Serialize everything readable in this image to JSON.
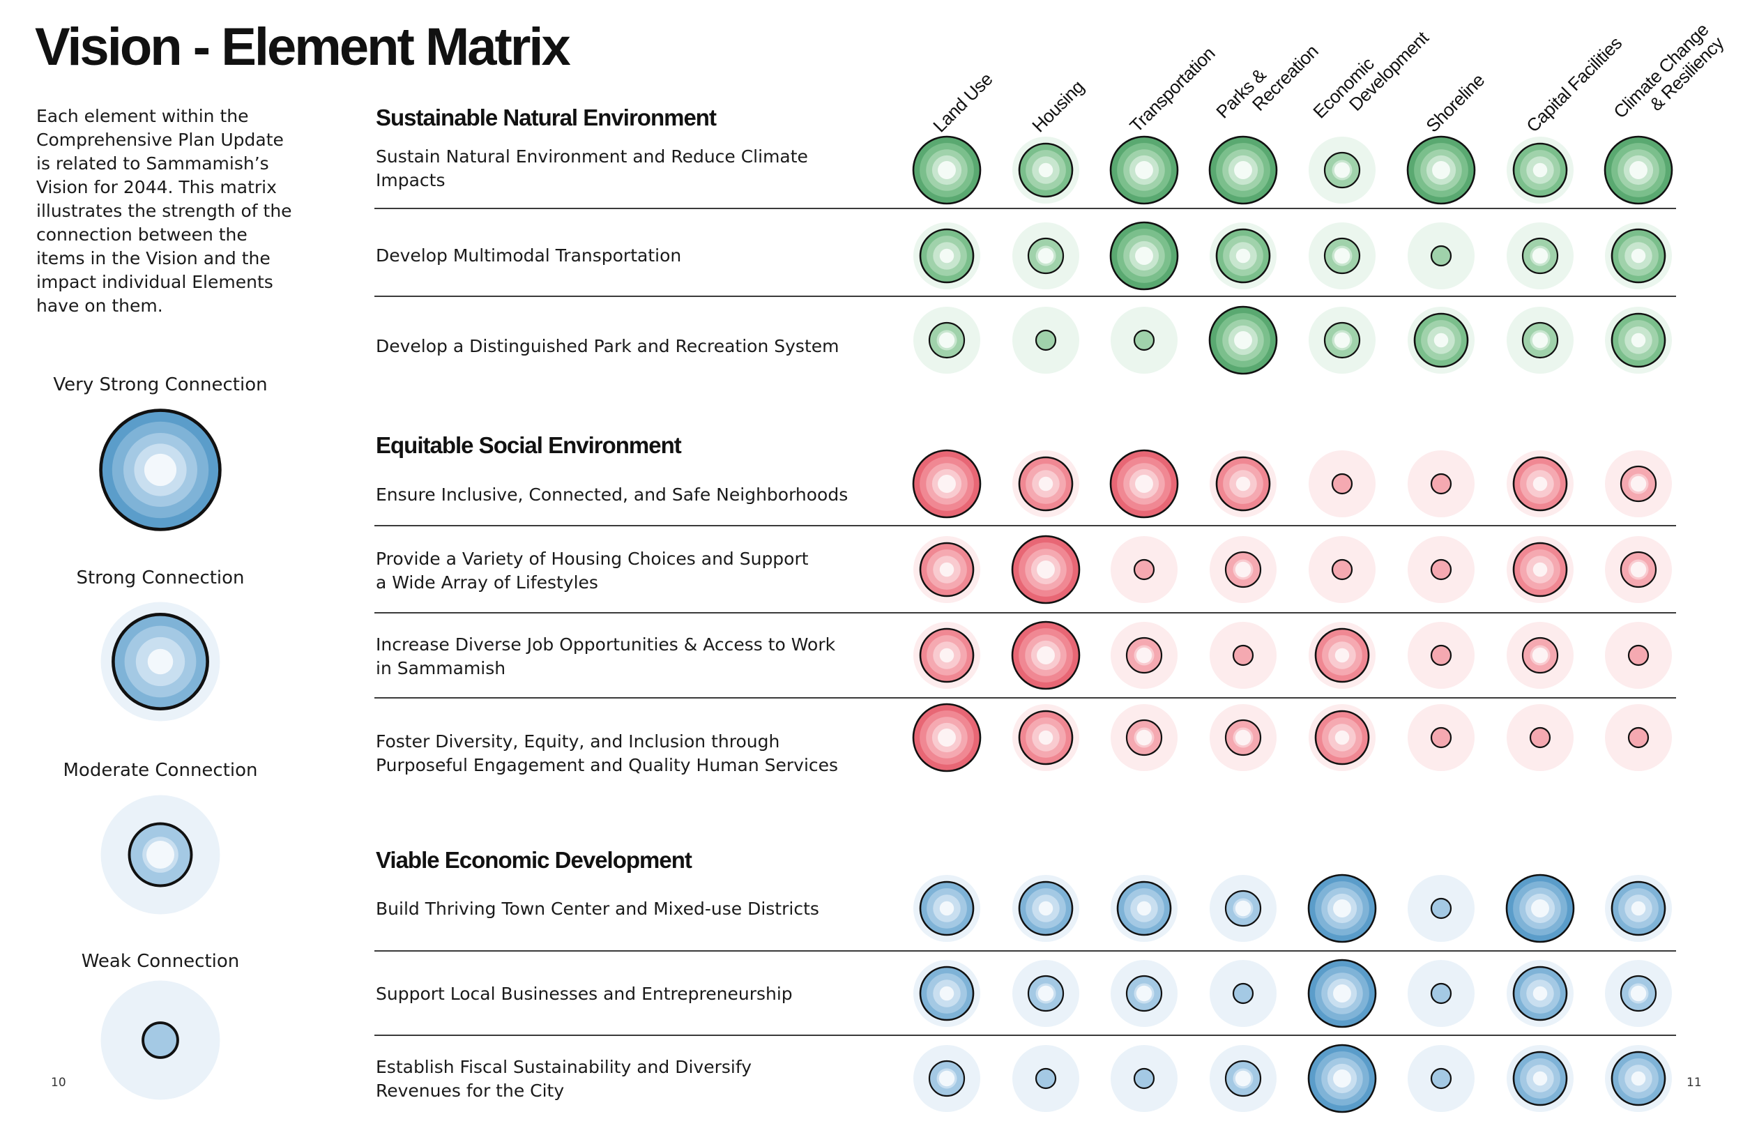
{
  "title": "Vision - Element Matrix",
  "intro": "Each element within the Comprehensive Plan Update is related to Sammamish’s Vision for 2044.  This matrix illustrates the strength of the connection between the items in the Vision and the impact individual Elements have on them.",
  "legend": [
    {
      "label": "Very Strong Connection",
      "level": 4
    },
    {
      "label": "Strong Connection",
      "level": 3
    },
    {
      "label": "Moderate Connection",
      "level": 2
    },
    {
      "label": "Weak Connection",
      "level": 1
    }
  ],
  "page_numbers": {
    "left": "10",
    "right": "11"
  },
  "columns": [
    {
      "lines": [
        "Land Use"
      ]
    },
    {
      "lines": [
        "Housing"
      ]
    },
    {
      "lines": [
        "Transportation"
      ]
    },
    {
      "lines": [
        "Parks &",
        "Recreation"
      ]
    },
    {
      "lines": [
        "Economic",
        "Development"
      ]
    },
    {
      "lines": [
        "Shoreline"
      ]
    },
    {
      "lines": [
        "Capital Facilities"
      ]
    },
    {
      "lines": [
        "Climate Change",
        "& Resiliency"
      ]
    }
  ],
  "sections": [
    {
      "title": "Sustainable Natural Environment",
      "palette": "green",
      "rows": [
        {
          "lines": [
            "Sustain Natural Environment and Reduce Climate",
            "Impacts"
          ]
        },
        {
          "lines": [
            "Develop Multimodal Transportation"
          ]
        },
        {
          "lines": [
            "Develop a Distinguished Park and Recreation System"
          ]
        }
      ]
    },
    {
      "title": "Equitable Social Environment",
      "palette": "red",
      "rows": [
        {
          "lines": [
            "Ensure Inclusive, Connected, and Safe Neighborhoods"
          ]
        },
        {
          "lines": [
            "Provide a Variety of Housing Choices and Support",
            "a Wide Array of Lifestyles"
          ]
        },
        {
          "lines": [
            "Increase Diverse Job Opportunities & Access to Work",
            "in Sammamish"
          ]
        },
        {
          "lines": [
            "Foster Diversity, Equity, and Inclusion through",
            "Purposeful Engagement and Quality Human Services"
          ]
        }
      ]
    },
    {
      "title": "Viable Economic Development",
      "palette": "blue",
      "rows": [
        {
          "lines": [
            "Build Thriving Town Center and Mixed-use Districts"
          ]
        },
        {
          "lines": [
            "Support Local Businesses and Entrepreneurship"
          ]
        },
        {
          "lines": [
            "Establish Fiscal Sustainability and Diversify",
            "Revenues for the City"
          ]
        }
      ]
    }
  ],
  "chart_data": {
    "type": "heatmap",
    "scale": {
      "1": "Weak Connection",
      "2": "Moderate Connection",
      "3": "Strong Connection",
      "4": "Very Strong Connection"
    },
    "columns": [
      "Land Use",
      "Housing",
      "Transportation",
      "Parks & Recreation",
      "Economic Development",
      "Shoreline",
      "Capital Facilities",
      "Climate Change & Resiliency"
    ],
    "rows": [
      {
        "section": "Sustainable Natural Environment",
        "item": "Sustain Natural Environment and Reduce Climate Impacts",
        "values": [
          4,
          3,
          4,
          4,
          2,
          4,
          3,
          4
        ]
      },
      {
        "section": "Sustainable Natural Environment",
        "item": "Develop Multimodal Transportation",
        "values": [
          3,
          2,
          4,
          3,
          2,
          1,
          2,
          3
        ]
      },
      {
        "section": "Sustainable Natural Environment",
        "item": "Develop a Distinguished Park and Recreation System",
        "values": [
          2,
          1,
          1,
          4,
          2,
          3,
          2,
          3
        ]
      },
      {
        "section": "Equitable Social Environment",
        "item": "Ensure Inclusive, Connected, and Safe Neighborhoods",
        "values": [
          4,
          3,
          4,
          3,
          1,
          1,
          3,
          2
        ]
      },
      {
        "section": "Equitable Social Environment",
        "item": "Provide a Variety of Housing Choices and Support a Wide Array of Lifestyles",
        "values": [
          3,
          4,
          1,
          2,
          1,
          1,
          3,
          2
        ]
      },
      {
        "section": "Equitable Social Environment",
        "item": "Increase Diverse Job Opportunities & Access to Work in Sammamish",
        "values": [
          3,
          4,
          2,
          1,
          3,
          1,
          2,
          1
        ]
      },
      {
        "section": "Equitable Social Environment",
        "item": "Foster Diversity, Equity, and Inclusion through Purposeful Engagement and Quality Human Services",
        "values": [
          4,
          3,
          2,
          2,
          3,
          1,
          1,
          1
        ]
      },
      {
        "section": "Viable Economic Development",
        "item": "Build Thriving Town Center and Mixed-use Districts",
        "values": [
          3,
          3,
          3,
          2,
          4,
          1,
          4,
          3
        ]
      },
      {
        "section": "Viable Economic Development",
        "item": "Support Local Businesses and Entrepreneurship",
        "values": [
          3,
          2,
          2,
          1,
          4,
          1,
          3,
          2
        ]
      },
      {
        "section": "Viable Economic Development",
        "item": "Establish Fiscal Sustainability and Diversify Revenues for the City",
        "values": [
          2,
          1,
          1,
          2,
          4,
          1,
          3,
          3
        ]
      }
    ],
    "colors": {
      "green": {
        "halo": "#ebf6ee",
        "rings": [
          "#5aa971",
          "#7bbf8c",
          "#a0d2ab",
          "#c8e6cf"
        ],
        "core": "#f4fbf6"
      },
      "red": {
        "halo": "#fdeced",
        "rings": [
          "#e86775",
          "#f08893",
          "#f5a9b1",
          "#f9cbd0"
        ],
        "core": "#fdf3f4"
      },
      "blue": {
        "halo": "#eaf2f9",
        "rings": [
          "#5b9dca",
          "#7fb3d7",
          "#a4c9e4",
          "#c9dff0"
        ],
        "core": "#f3f8fc"
      }
    },
    "stroke": "#111111"
  }
}
